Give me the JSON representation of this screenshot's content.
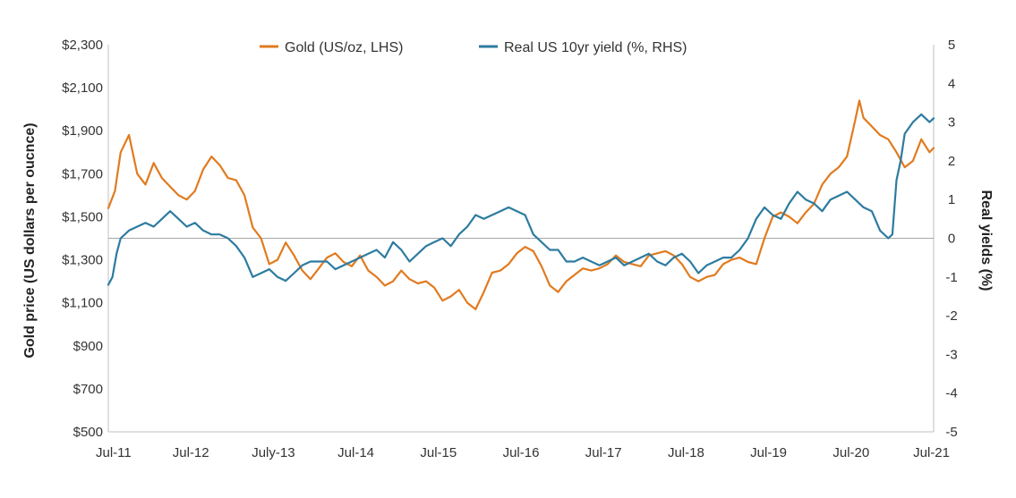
{
  "chart_data": {
    "type": "line",
    "title": "",
    "ylabel_left": "Gold price (US dollars per oucnce)",
    "ylabel_right": "Real yields (%)",
    "xlabel": "",
    "x_range": [
      2011.5,
      2021.5
    ],
    "ylim_left": [
      500,
      2300
    ],
    "ylim_right": [
      -5,
      5
    ],
    "y_ticks_left": [
      "$2,300",
      "$2,100",
      "$1,900",
      "$1,700",
      "$1,500",
      "$1,300",
      "$1,100",
      "$900",
      "$700",
      "$500"
    ],
    "y_tick_values_left": [
      2300,
      2100,
      1900,
      1700,
      1500,
      1300,
      1100,
      900,
      700,
      500
    ],
    "y_ticks_right": [
      "5",
      "4",
      "3",
      "2",
      "1",
      "0",
      "-1",
      "-2",
      "-3",
      "-4",
      "-5"
    ],
    "y_tick_values_right": [
      5,
      4,
      3,
      2,
      1,
      0,
      -1,
      -2,
      -3,
      -4,
      -5
    ],
    "x_ticks": [
      "Jul-11",
      "Jul-12",
      "July-13",
      "Jul-14",
      "Jul-15",
      "Jul-16",
      "Jul-17",
      "Jul-18",
      "Jul-19",
      "Jul-20",
      "Jul-21"
    ],
    "x_tick_values": [
      2011.5,
      2012.5,
      2013.5,
      2014.5,
      2015.5,
      2016.5,
      2017.5,
      2018.5,
      2019.5,
      2020.5,
      2021.5
    ],
    "reference_line": {
      "axis": "right",
      "value": 0
    },
    "legend_position": "top-center",
    "series": [
      {
        "name": "Gold (US/oz, LHS)",
        "axis": "left",
        "color": "#E07B1F",
        "x": [
          2011.5,
          2011.58,
          2011.65,
          2011.75,
          2011.85,
          2011.95,
          2012.05,
          2012.15,
          2012.25,
          2012.35,
          2012.45,
          2012.55,
          2012.65,
          2012.75,
          2012.85,
          2012.95,
          2013.05,
          2013.15,
          2013.25,
          2013.35,
          2013.45,
          2013.55,
          2013.65,
          2013.75,
          2013.85,
          2013.95,
          2014.05,
          2014.15,
          2014.25,
          2014.35,
          2014.45,
          2014.55,
          2014.65,
          2014.75,
          2014.85,
          2014.95,
          2015.05,
          2015.15,
          2015.25,
          2015.35,
          2015.45,
          2015.55,
          2015.65,
          2015.75,
          2015.85,
          2015.95,
          2016.05,
          2016.15,
          2016.25,
          2016.35,
          2016.45,
          2016.55,
          2016.65,
          2016.75,
          2016.85,
          2016.95,
          2017.05,
          2017.15,
          2017.25,
          2017.35,
          2017.45,
          2017.55,
          2017.65,
          2017.75,
          2017.85,
          2017.95,
          2018.05,
          2018.15,
          2018.25,
          2018.35,
          2018.45,
          2018.55,
          2018.65,
          2018.75,
          2018.85,
          2018.95,
          2019.05,
          2019.15,
          2019.25,
          2019.35,
          2019.45,
          2019.55,
          2019.65,
          2019.75,
          2019.85,
          2019.95,
          2020.05,
          2020.15,
          2020.25,
          2020.35,
          2020.45,
          2020.55,
          2020.6,
          2020.65,
          2020.75,
          2020.85,
          2020.95,
          2021.05,
          2021.15,
          2021.25,
          2021.35,
          2021.45,
          2021.5
        ],
        "values": [
          1540,
          1620,
          1800,
          1880,
          1700,
          1650,
          1750,
          1680,
          1640,
          1600,
          1580,
          1620,
          1720,
          1780,
          1740,
          1680,
          1670,
          1600,
          1450,
          1400,
          1280,
          1300,
          1380,
          1320,
          1250,
          1210,
          1260,
          1310,
          1330,
          1290,
          1270,
          1320,
          1250,
          1220,
          1180,
          1200,
          1250,
          1210,
          1190,
          1200,
          1170,
          1110,
          1130,
          1160,
          1100,
          1070,
          1150,
          1240,
          1250,
          1280,
          1330,
          1360,
          1340,
          1270,
          1180,
          1150,
          1200,
          1230,
          1260,
          1250,
          1260,
          1280,
          1320,
          1290,
          1280,
          1270,
          1320,
          1330,
          1340,
          1320,
          1280,
          1220,
          1200,
          1220,
          1230,
          1280,
          1300,
          1310,
          1290,
          1280,
          1400,
          1500,
          1520,
          1500,
          1470,
          1520,
          1560,
          1650,
          1700,
          1730,
          1780,
          1950,
          2040,
          1960,
          1920,
          1880,
          1860,
          1800,
          1730,
          1760,
          1860,
          1800,
          1820
        ]
      },
      {
        "name": "Real US 10yr yield (%, RHS)",
        "axis": "right",
        "color": "#2D7BA0",
        "x": [
          2011.5,
          2011.55,
          2011.6,
          2011.65,
          2011.75,
          2011.85,
          2011.95,
          2012.05,
          2012.15,
          2012.25,
          2012.35,
          2012.45,
          2012.55,
          2012.65,
          2012.75,
          2012.85,
          2012.95,
          2013.05,
          2013.15,
          2013.25,
          2013.35,
          2013.45,
          2013.55,
          2013.65,
          2013.75,
          2013.85,
          2013.95,
          2014.05,
          2014.15,
          2014.25,
          2014.35,
          2014.45,
          2014.55,
          2014.65,
          2014.75,
          2014.85,
          2014.95,
          2015.05,
          2015.15,
          2015.25,
          2015.35,
          2015.45,
          2015.55,
          2015.65,
          2015.75,
          2015.85,
          2015.95,
          2016.05,
          2016.15,
          2016.25,
          2016.35,
          2016.45,
          2016.55,
          2016.65,
          2016.75,
          2016.85,
          2016.95,
          2017.05,
          2017.15,
          2017.25,
          2017.35,
          2017.45,
          2017.55,
          2017.65,
          2017.75,
          2017.85,
          2017.95,
          2018.05,
          2018.15,
          2018.25,
          2018.35,
          2018.45,
          2018.55,
          2018.65,
          2018.75,
          2018.85,
          2018.95,
          2019.05,
          2019.15,
          2019.25,
          2019.35,
          2019.45,
          2019.55,
          2019.65,
          2019.75,
          2019.85,
          2019.95,
          2020.05,
          2020.15,
          2020.25,
          2020.35,
          2020.45,
          2020.55,
          2020.65,
          2020.75,
          2020.85,
          2020.95,
          2021.0,
          2021.05,
          2021.1,
          2021.15,
          2021.25,
          2021.35,
          2021.45,
          2021.5
        ],
        "values": [
          -1.2,
          -1.0,
          -0.4,
          0.0,
          0.2,
          0.3,
          0.4,
          0.3,
          0.5,
          0.7,
          0.5,
          0.3,
          0.4,
          0.2,
          0.1,
          0.1,
          0.0,
          -0.2,
          -0.5,
          -1.0,
          -0.9,
          -0.8,
          -1.0,
          -1.1,
          -0.9,
          -0.7,
          -0.6,
          -0.6,
          -0.6,
          -0.8,
          -0.7,
          -0.6,
          -0.5,
          -0.4,
          -0.3,
          -0.5,
          -0.1,
          -0.3,
          -0.6,
          -0.4,
          -0.2,
          -0.1,
          0.0,
          -0.2,
          0.1,
          0.3,
          0.6,
          0.5,
          0.6,
          0.7,
          0.8,
          0.7,
          0.6,
          0.1,
          -0.1,
          -0.3,
          -0.3,
          -0.6,
          -0.6,
          -0.5,
          -0.6,
          -0.7,
          -0.6,
          -0.5,
          -0.7,
          -0.6,
          -0.5,
          -0.4,
          -0.6,
          -0.7,
          -0.5,
          -0.4,
          -0.6,
          -0.9,
          -0.7,
          -0.6,
          -0.5,
          -0.5,
          -0.3,
          0.0,
          0.5,
          0.8,
          0.6,
          0.5,
          0.9,
          1.2,
          1.0,
          0.9,
          0.7,
          1.0,
          1.1,
          1.2,
          1.0,
          0.8,
          0.7,
          0.2,
          0.0,
          0.1,
          1.5,
          2.0,
          2.7,
          3.0,
          3.2,
          3.0,
          3.1
        ]
      }
    ]
  }
}
